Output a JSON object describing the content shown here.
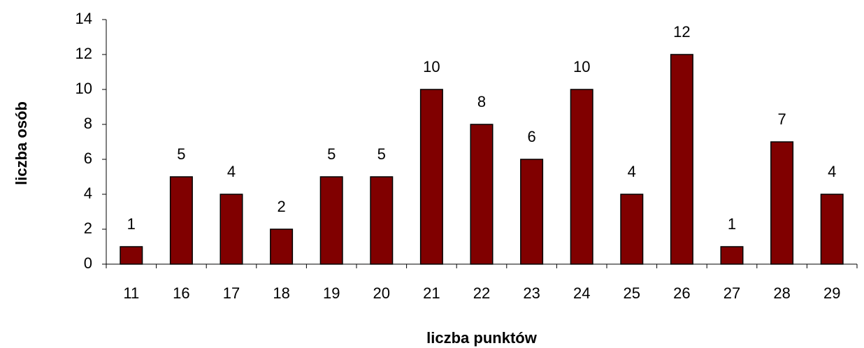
{
  "chart_data": {
    "type": "bar",
    "xlabel": "liczba punktów",
    "ylabel": "liczba osób",
    "categories": [
      "11",
      "16",
      "17",
      "18",
      "19",
      "20",
      "21",
      "22",
      "23",
      "24",
      "25",
      "26",
      "27",
      "28",
      "29"
    ],
    "values": [
      1,
      5,
      4,
      2,
      5,
      5,
      10,
      8,
      6,
      10,
      4,
      12,
      1,
      7,
      4
    ],
    "color": "#800000",
    "ylim": [
      0,
      14
    ],
    "yticks": [
      0,
      2,
      4,
      6,
      8,
      10,
      12,
      14
    ],
    "grid": false,
    "data_labels": true
  }
}
